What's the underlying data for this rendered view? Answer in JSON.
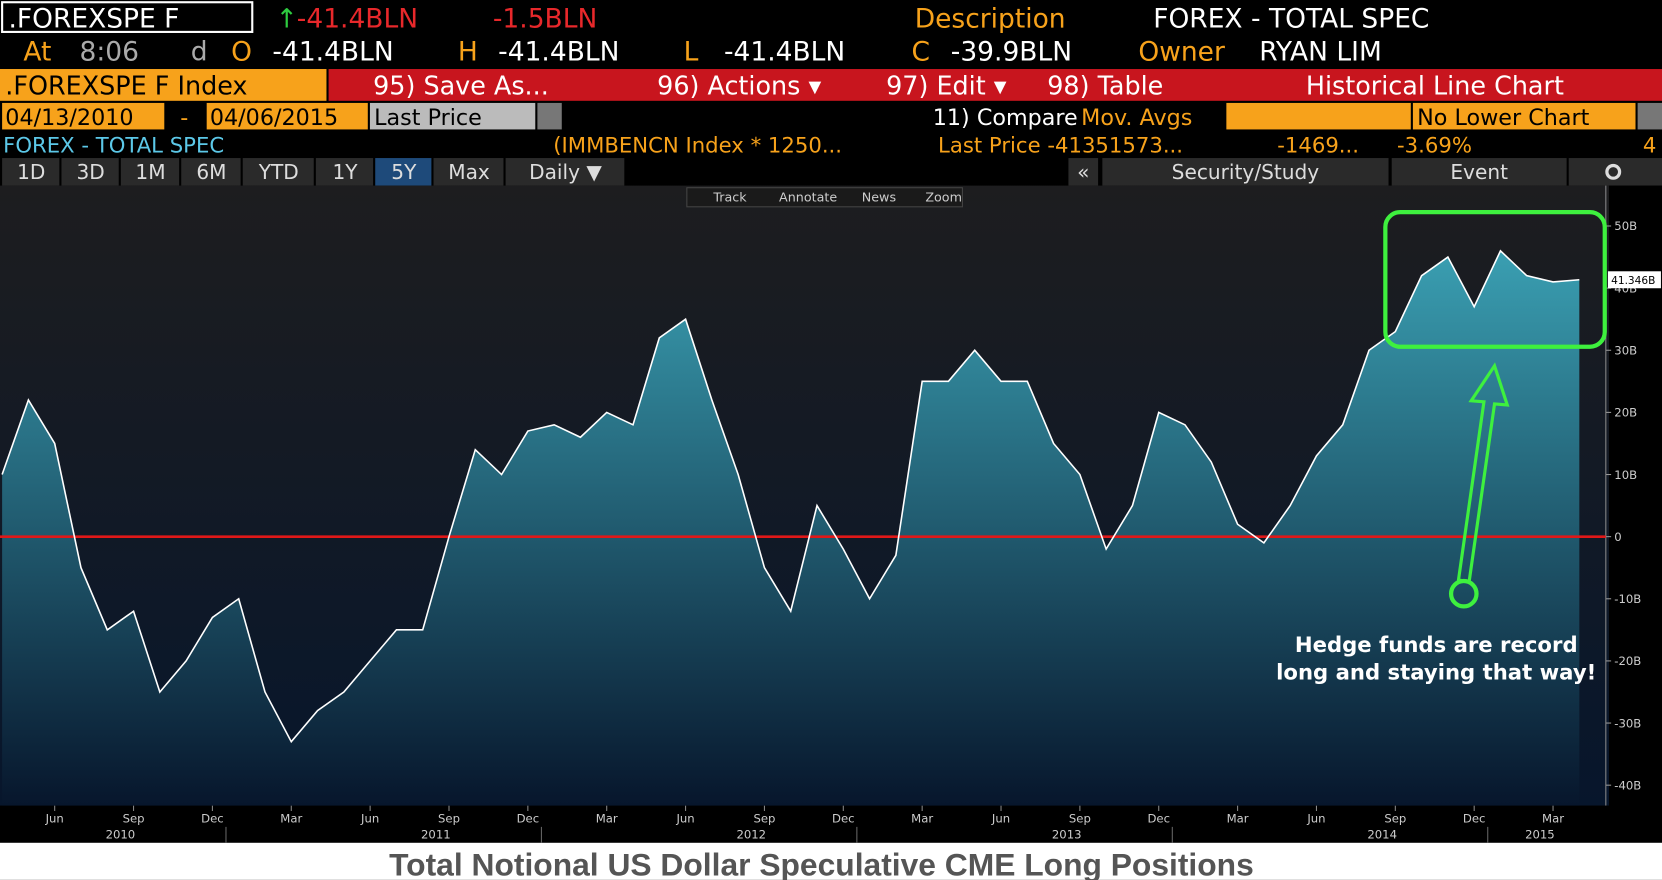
{
  "header": {
    "ticker": ".FOREXSPE F",
    "change_arrow": "↑",
    "change": "-41.4BLN",
    "net": "-1.5BLN",
    "description_label": "Description",
    "description": "FOREX - TOTAL SPEC",
    "at_label": "At",
    "time": "8:06",
    "d_label": "d",
    "open_label": "O",
    "open": "-41.4BLN",
    "high_label": "H",
    "high": "-41.4BLN",
    "low_label": "L",
    "low": "-41.4BLN",
    "close_label": "C",
    "close": "-39.9BLN",
    "owner_label": "Owner",
    "owner": "RYAN LIM"
  },
  "menu": {
    "security": ".FOREXSPE F Index",
    "save": "95) Save As...",
    "actions": "96) Actions ▾",
    "edit": "97) Edit ▾",
    "table": "98) Table",
    "view": "Historical Line Chart"
  },
  "range_bar": {
    "start": "04/13/2010",
    "dash": "-",
    "end": "04/06/2015",
    "field": "Last Price",
    "compare": "11) Compare",
    "averages": "Mov. Avgs",
    "lower": "No Lower Chart"
  },
  "legend_bar": {
    "name": "FOREX - TOTAL SPEC",
    "formula": "(IMMBENCN Index * 1250...",
    "last": "Last Price -41351573...",
    "change": "-1469...",
    "pct": "-3.69%",
    "count": "4"
  },
  "buttons": [
    "1D",
    "3D",
    "1M",
    "6M",
    "YTD",
    "1Y",
    "5Y",
    "Max",
    "Daily ▼"
  ],
  "side_buttons": [
    "«",
    "Security/Study",
    "Event"
  ],
  "toolbar": [
    "Track",
    "Annotate",
    "News",
    "Zoom"
  ],
  "chart_data": {
    "type": "area",
    "categories": [
      null,
      null,
      "Jun",
      null,
      null,
      "Sep",
      null,
      null,
      "Dec",
      null,
      null,
      "Mar",
      null,
      null,
      "Jun",
      null,
      null,
      "Sep",
      null,
      null,
      "Dec",
      null,
      null,
      "Mar",
      null,
      null,
      "Jun",
      null,
      null,
      "Sep",
      null,
      null,
      "Dec",
      null,
      null,
      "Mar",
      null,
      null,
      "Jun",
      null,
      null,
      "Sep",
      null,
      null,
      "Dec",
      null,
      null,
      "Mar",
      null,
      null,
      "Jun",
      null,
      null,
      "Sep",
      null,
      null,
      "Dec",
      null,
      null,
      "Mar",
      null
    ],
    "x_year_labels": [
      "2010",
      "2011",
      "2012",
      "2013",
      "2014",
      "2015"
    ],
    "values": [
      10,
      22,
      15,
      -5,
      -15,
      -12,
      -25,
      -20,
      -13,
      -10,
      -25,
      -33,
      -28,
      -25,
      -20,
      -15,
      -15,
      0,
      14,
      10,
      17,
      18,
      16,
      20,
      18,
      32,
      35,
      22,
      10,
      -5,
      -12,
      5,
      -2,
      -10,
      -3,
      25,
      25,
      30,
      25,
      25,
      15,
      10,
      -2,
      5,
      20,
      18,
      12,
      2,
      -1,
      5,
      13,
      18,
      30,
      33,
      42,
      45,
      37,
      46,
      42,
      41,
      41.346
    ],
    "value_labels": [
      null,
      null,
      null,
      null,
      null,
      null,
      null,
      null,
      null,
      null,
      null,
      null,
      null,
      null,
      null,
      null,
      null,
      null,
      null,
      null,
      null,
      null,
      null,
      null,
      null,
      null,
      null,
      null,
      null,
      null,
      null,
      null,
      null,
      null,
      null,
      null,
      null,
      null,
      null,
      null,
      null,
      null,
      null,
      null,
      null,
      null,
      null,
      null,
      null,
      null,
      null,
      null,
      null,
      null,
      null,
      null,
      null,
      null,
      null,
      null,
      "41.346B"
    ],
    "color": "#ffffff",
    "fill_color": "#3a9fb2",
    "ylim": [
      -43.3,
      56.5
    ],
    "yticks": [
      {
        "value": 50,
        "label": "50B"
      },
      {
        "value": 40,
        "label": "40B"
      },
      {
        "value": 30,
        "label": "30B"
      },
      {
        "value": 20,
        "label": "20B"
      },
      {
        "value": 10,
        "label": "10B"
      },
      0,
      {
        "value": -10,
        "label": "-10B"
      },
      {
        "value": -20,
        "label": "-20B"
      },
      {
        "value": -30,
        "label": "-30B"
      },
      {
        "value": -40,
        "label": "-40B"
      }
    ],
    "reference_line": 0,
    "reference_color": "#e01818",
    "annotation": [
      "Hedge funds are record",
      "long and staying that way!"
    ]
  },
  "caption": "Total Notional US Dollar Speculative CME Long Positions"
}
